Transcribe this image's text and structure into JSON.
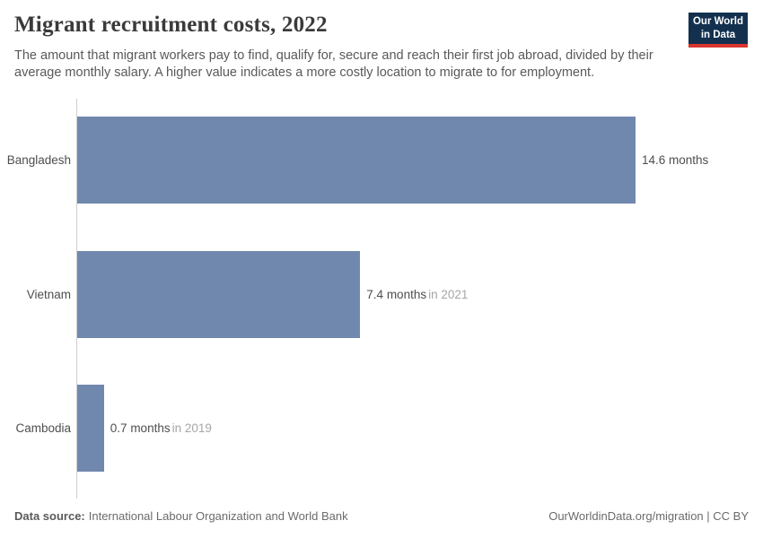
{
  "header": {
    "title": "Migrant recruitment costs, 2022",
    "subtitle": "The amount that migrant workers pay to find, qualify for, secure and reach their first job abroad, divided by their average monthly salary. A higher value indicates a more costly location to migrate to for employment.",
    "logo": {
      "line1": "Our World",
      "line2": "in Data"
    }
  },
  "chart_data": {
    "type": "bar",
    "orientation": "horizontal",
    "title": "Migrant recruitment costs, 2022",
    "unit": "months",
    "categories": [
      "Bangladesh",
      "Vietnam",
      "Cambodia"
    ],
    "values": [
      14.6,
      7.4,
      0.7
    ],
    "value_labels": [
      "14.6 months",
      "7.4 months",
      "0.7 months"
    ],
    "value_suffixes": [
      "",
      "in 2021",
      "in 2019"
    ],
    "xlim": [
      0,
      14.6
    ],
    "grid": false,
    "legend": false,
    "bar_color": "#7188ae"
  },
  "footer": {
    "source_label": "Data source:",
    "source_text": "International Labour Organization and World Bank",
    "attribution": "OurWorldinData.org/migration | CC BY"
  },
  "colors": {
    "bar": "#7188ae",
    "axis_line": "#cfcfcf",
    "logo_navy": "#13304f",
    "logo_red": "#d8352f",
    "title_text": "#3a3a3a",
    "subtitle_text": "#595959",
    "suffix_text": "#a6a6a6"
  }
}
